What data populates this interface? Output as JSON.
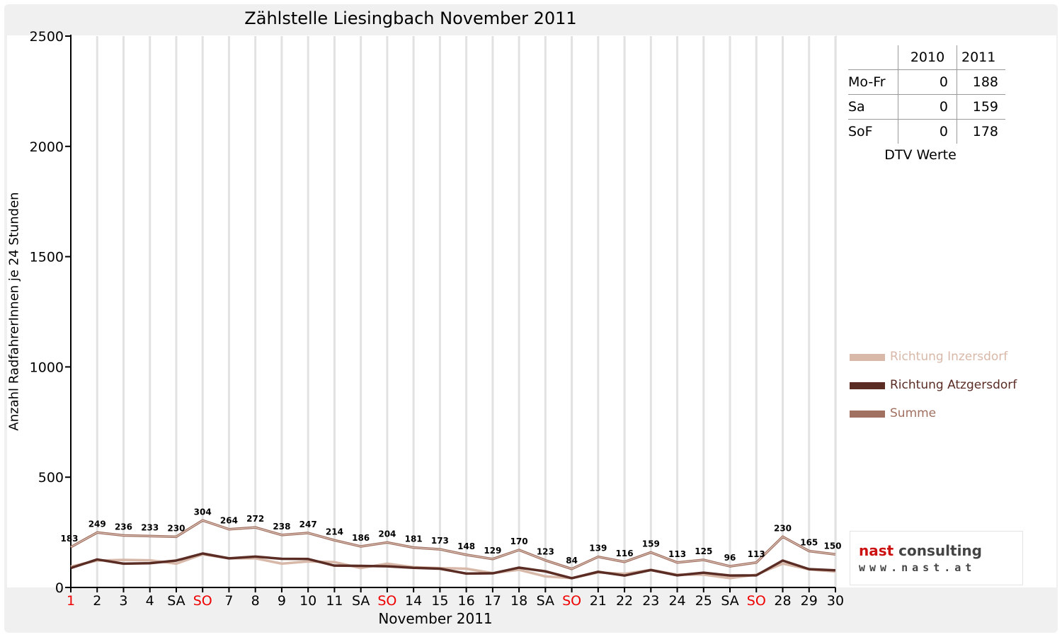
{
  "chart_data": {
    "type": "line",
    "title": "Zählstelle Liesingbach November 2011",
    "ylabel": "Anzahl RadfahrerInnen je 24 Stunden",
    "xlabel": "November 2011",
    "ylim": [
      0,
      2500
    ],
    "yticks": [
      0,
      500,
      1000,
      1500,
      2000,
      2500
    ],
    "grid": true,
    "legend_position": "right",
    "categories": [
      "1",
      "2",
      "3",
      "4",
      "SA",
      "SO",
      "7",
      "8",
      "9",
      "10",
      "11",
      "SA",
      "SO",
      "14",
      "15",
      "16",
      "17",
      "18",
      "SA",
      "SO",
      "21",
      "22",
      "23",
      "24",
      "25",
      "SA",
      "SO",
      "28",
      "29",
      "30"
    ],
    "highlight_categories": [
      0,
      5,
      12,
      19,
      26
    ],
    "series": [
      {
        "name": "Richtung Inzersdorf",
        "color": "#d8b8a8",
        "values": [
          95,
          122,
          125,
          123,
          108,
          150,
          132,
          132,
          108,
          118,
          115,
          88,
          108,
          92,
          88,
          85,
          65,
          80,
          50,
          42,
          68,
          62,
          80,
          58,
          58,
          42,
          58,
          108,
          82,
          72
        ]
      },
      {
        "name": "Richtung Atzgersdorf",
        "color": "#5a2c24",
        "values": [
          88,
          127,
          108,
          110,
          122,
          154,
          132,
          140,
          130,
          129,
          99,
          98,
          96,
          89,
          85,
          63,
          64,
          90,
          73,
          42,
          71,
          54,
          79,
          55,
          67,
          54,
          55,
          122,
          83,
          78
        ]
      },
      {
        "name": "Summe",
        "color": "#a07060",
        "values": [
          183,
          249,
          236,
          233,
          230,
          304,
          264,
          272,
          238,
          247,
          214,
          186,
          204,
          181,
          173,
          148,
          129,
          170,
          123,
          84,
          139,
          116,
          159,
          113,
          125,
          96,
          113,
          230,
          165,
          150
        ]
      }
    ],
    "data_labels": [
      "183",
      "249",
      "236",
      "233",
      "230",
      "304",
      "264",
      "272",
      "238",
      "247",
      "214",
      "186",
      "204",
      "181",
      "173",
      "148",
      "129",
      "170",
      "123",
      "84",
      "139",
      "116",
      "159",
      "113",
      "125",
      "96",
      "113",
      "230",
      "165",
      "150"
    ]
  },
  "dtv": {
    "col_2010": "2010",
    "col_2011": "2011",
    "rows": [
      {
        "label": "Mo-Fr",
        "v2010": "0",
        "v2011": "188"
      },
      {
        "label": "Sa",
        "v2010": "0",
        "v2011": "159"
      },
      {
        "label": "SoF",
        "v2010": "0",
        "v2011": "178"
      }
    ],
    "caption": "DTV Werte"
  },
  "logo": {
    "word1": "nast",
    "word2": "consulting",
    "url": "www.nast.at"
  }
}
